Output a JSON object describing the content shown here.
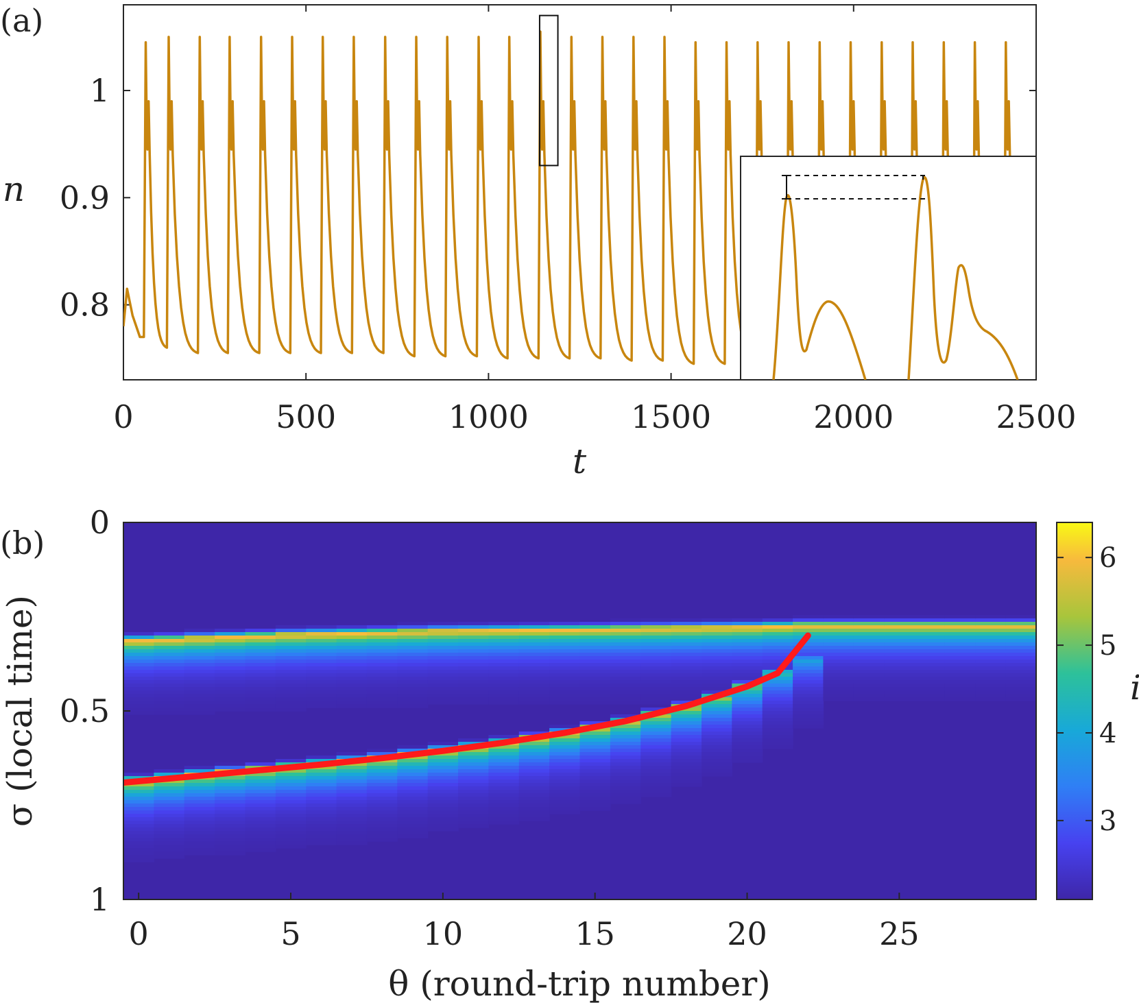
{
  "panel_a": {
    "label": "(a)",
    "chart_data": {
      "type": "line",
      "xlabel": "t",
      "ylabel": "n",
      "xlim": [
        0,
        2500
      ],
      "ylim": [
        0.73,
        1.08
      ],
      "xticks": [
        "0",
        "500",
        "1000",
        "1500",
        "2000",
        "2500"
      ],
      "xtick_values": [
        0,
        500,
        1000,
        1500,
        2000,
        2500
      ],
      "yticks": [
        "0.8",
        "0.9",
        "1"
      ],
      "ytick_values": [
        0.8,
        0.9,
        1.0
      ],
      "series": [
        {
          "color": "#C8860F",
          "description": "pulse train of n(t): sharp spikes up to ~1.05 with a secondary peak, decaying to minima ~0.75-0.77",
          "initial": {
            "t": [
              0,
              10,
              25,
              45
            ],
            "n": [
              0.78,
              0.815,
              0.79,
              0.77
            ]
          },
          "pulse_times": [
            62,
            125,
            210,
            292,
            378,
            463,
            547,
            632,
            718,
            803,
            888,
            974,
            1058,
            1143,
            1228,
            1313,
            1398,
            1483,
            1568,
            1653,
            1738,
            1823,
            1908,
            1993,
            2078,
            2163,
            2248,
            2333,
            2418
          ],
          "pulse_peak_n": [
            1.045,
            1.05,
            1.05,
            1.05,
            1.05,
            1.05,
            1.05,
            1.05,
            1.05,
            1.05,
            1.05,
            1.05,
            1.05,
            1.055,
            1.05,
            1.05,
            1.05,
            1.05,
            1.045,
            1.045,
            1.045,
            1.045,
            1.045,
            1.045,
            1.045,
            1.045,
            1.045,
            1.045,
            1.045
          ],
          "pulse_min_n": [
            0.77,
            0.76,
            0.755,
            0.755,
            0.755,
            0.755,
            0.755,
            0.755,
            0.755,
            0.752,
            0.752,
            0.752,
            0.75,
            0.75,
            0.75,
            0.75,
            0.748,
            0.748,
            0.745,
            0.745,
            0.745,
            0.745,
            0.745,
            0.745,
            0.745,
            0.745,
            0.745,
            0.745,
            0.745
          ]
        }
      ],
      "highlight_box": {
        "t_range": [
          1140,
          1190
        ],
        "n_range": [
          0.93,
          1.07
        ]
      },
      "inset": {
        "description": "zoom of highlighted double pulse showing peak height difference between two successive peaks",
        "color": "#C8860F"
      }
    }
  },
  "panel_b": {
    "label": "(b)",
    "chart_data": {
      "type": "heatmap",
      "xlabel": "θ (round-trip number)",
      "ylabel": "σ (local time)",
      "xlim": [
        -0.5,
        29.5
      ],
      "ylim": [
        0,
        1
      ],
      "y_reversed": true,
      "xticks": [
        "0",
        "5",
        "10",
        "15",
        "20",
        "25"
      ],
      "xtick_values": [
        0,
        5,
        10,
        15,
        20,
        25
      ],
      "yticks": [
        "0",
        "0.5",
        "1"
      ],
      "ytick_values": [
        0,
        0.5,
        1
      ],
      "colorbar": {
        "label": "i",
        "ticks": [
          "3",
          "4",
          "5",
          "6"
        ],
        "tick_values": [
          3,
          4,
          5,
          6
        ],
        "range": [
          2.1,
          6.4
        ],
        "colormap": "parula"
      },
      "background_value": 2.1,
      "upper_band": {
        "theta": [
          0,
          5,
          10,
          15,
          20,
          22,
          25,
          29
        ],
        "sigma_center": [
          0.315,
          0.3,
          0.29,
          0.285,
          0.28,
          0.275,
          0.275,
          0.275
        ],
        "peak_value": 6.0
      },
      "lower_band": {
        "theta": [
          0,
          2,
          4,
          6,
          8,
          10,
          12,
          14,
          16,
          18,
          19,
          20,
          21,
          22
        ],
        "sigma_center": [
          0.685,
          0.668,
          0.655,
          0.64,
          0.625,
          0.605,
          0.585,
          0.56,
          0.53,
          0.49,
          0.465,
          0.435,
          0.4,
          0.365
        ],
        "peak_value": [
          6.1,
          6.0,
          6.0,
          6.0,
          6.0,
          5.9,
          5.9,
          5.8,
          5.7,
          5.6,
          5.4,
          5.1,
          4.6,
          4.0
        ]
      },
      "overlay_curve": {
        "color": "#FF1A1A",
        "theta": [
          -0.5,
          2,
          4,
          6,
          8,
          10,
          12,
          14,
          16,
          18,
          20,
          21,
          22
        ],
        "sigma": [
          0.69,
          0.672,
          0.657,
          0.642,
          0.625,
          0.606,
          0.584,
          0.558,
          0.527,
          0.487,
          0.435,
          0.4,
          0.3
        ]
      }
    }
  }
}
